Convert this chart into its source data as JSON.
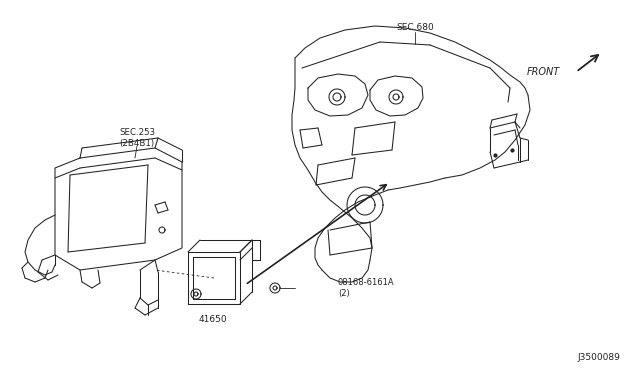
{
  "background_color": "#ffffff",
  "fig_width": 6.4,
  "fig_height": 3.72,
  "dpi": 100,
  "labels": {
    "sec680": "SEC.680",
    "front": "FRONT",
    "sec253": "SEC.253\n(2B4B1)",
    "part_num": "08168-6161A\n(2)",
    "part_41650": "41650",
    "diagram_id": "J3500089"
  },
  "line_color": "#222222",
  "lw": 0.75
}
